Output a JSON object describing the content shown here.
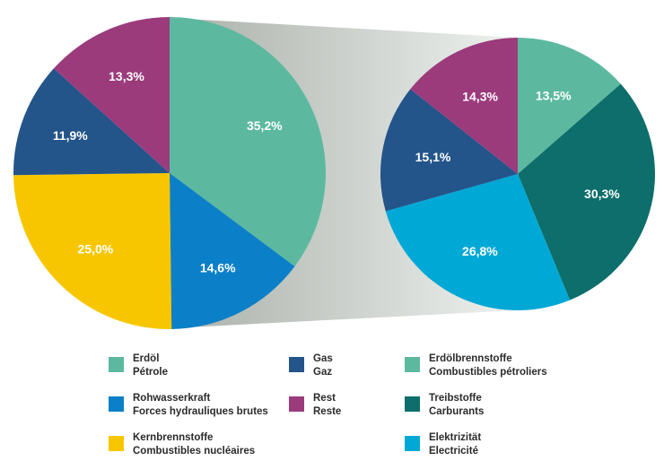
{
  "chart_data": [
    {
      "type": "pie",
      "slices": [
        {
          "key": "erdoel",
          "value": 35.2,
          "label": "35,2%",
          "color": "#5cb9a0"
        },
        {
          "key": "rohwasserkraft",
          "value": 14.6,
          "label": "14,6%",
          "color": "#0b80c8"
        },
        {
          "key": "kernbrennstoffe",
          "value": 25.0,
          "label": "25,0%",
          "color": "#f8c600"
        },
        {
          "key": "gas",
          "value": 11.9,
          "label": "11,9%",
          "color": "#23548a"
        },
        {
          "key": "rest",
          "value": 13.3,
          "label": "13,3%",
          "color": "#9b3b7c"
        }
      ]
    },
    {
      "type": "pie",
      "slices": [
        {
          "key": "erdoelbrennstoffe",
          "value": 13.5,
          "label": "13,5%",
          "color": "#5cb9a0"
        },
        {
          "key": "treibstoffe",
          "value": 30.3,
          "label": "30,3%",
          "color": "#0d6e6b"
        },
        {
          "key": "elektrizitaet",
          "value": 26.8,
          "label": "26,8%",
          "color": "#00a8d6"
        },
        {
          "key": "gas",
          "value": 15.1,
          "label": "15,1%",
          "color": "#23548a"
        },
        {
          "key": "rest",
          "value": 14.3,
          "label": "14,3%",
          "color": "#9b3b7c"
        }
      ]
    }
  ],
  "legend": [
    {
      "de": "Erdöl",
      "fr": "Pétrole",
      "color": "#5cb9a0"
    },
    {
      "de": "Rohwasserkraft",
      "fr": "Forces hydrauliques brutes",
      "color": "#0b80c8"
    },
    {
      "de": "Kernbrennstoffe",
      "fr": "Combustibles nucléaires",
      "color": "#f8c600"
    },
    {
      "de": "Gas",
      "fr": "Gaz",
      "color": "#23548a"
    },
    {
      "de": "Rest",
      "fr": "Reste",
      "color": "#9b3b7c"
    },
    {
      "de": "Erdölbrennstoffe",
      "fr": "Combustibles pétroliers",
      "color": "#5cb9a0"
    },
    {
      "de": "Treibstoffe",
      "fr": "Carburants",
      "color": "#0d6e6b"
    },
    {
      "de": "Elektrizität",
      "fr": "Electricité",
      "color": "#00a8d6"
    }
  ]
}
